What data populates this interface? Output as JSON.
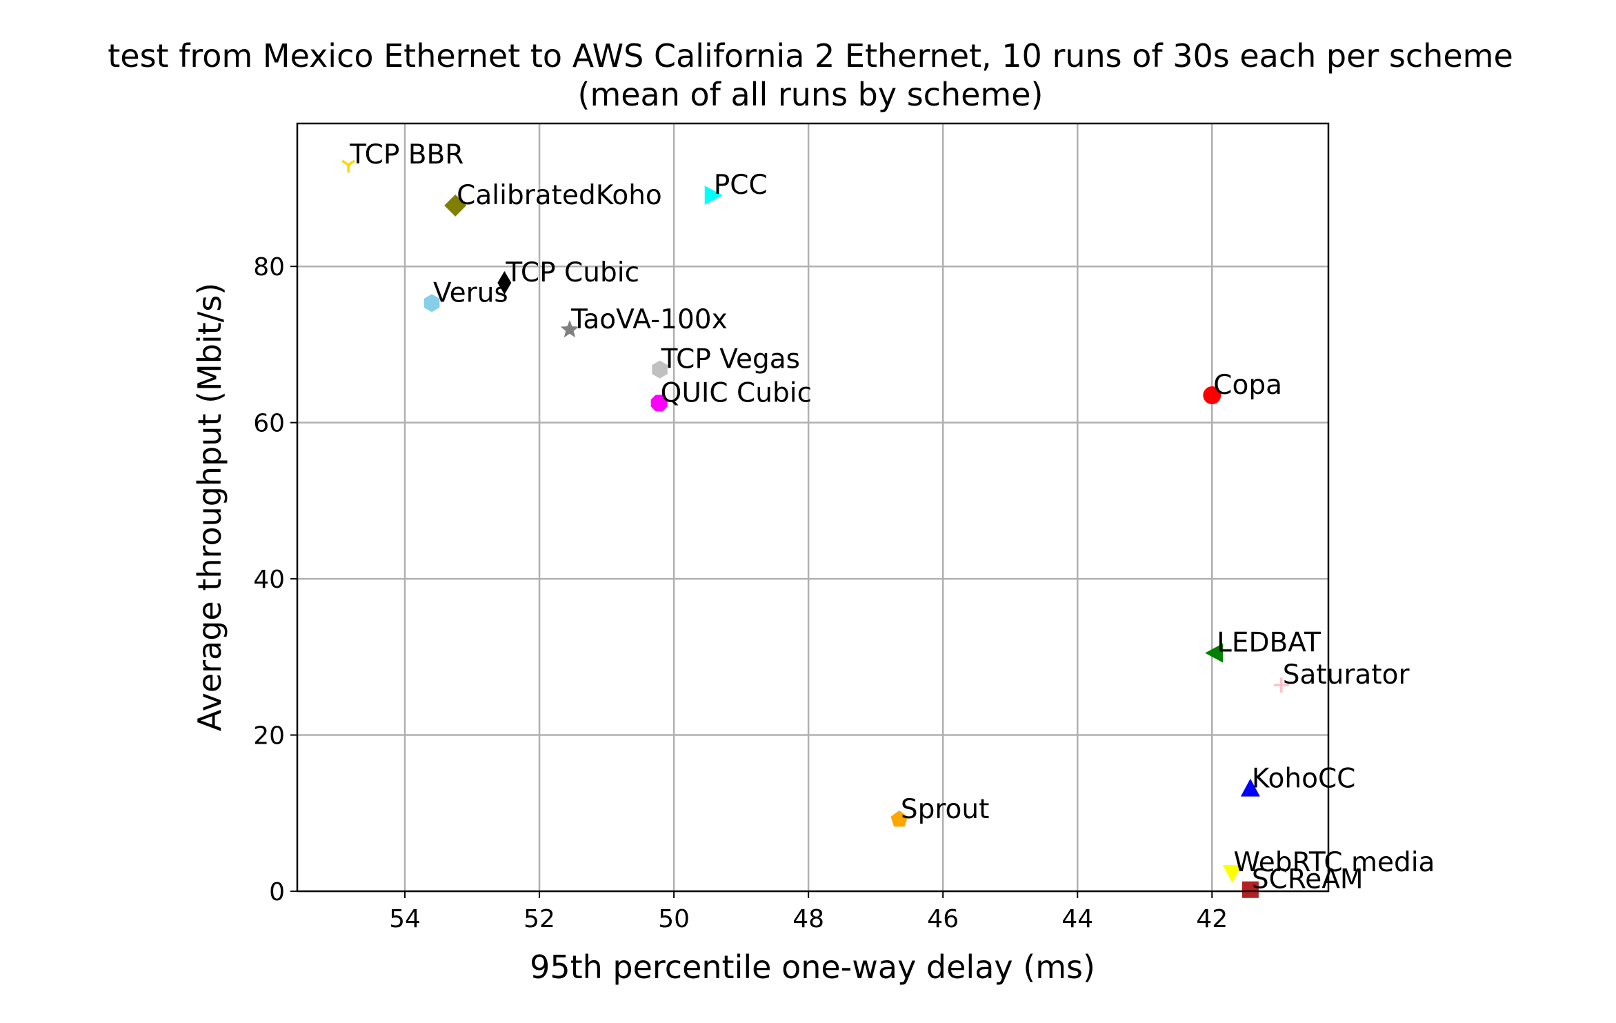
{
  "chart_data": {
    "type": "scatter",
    "title": "test from Mexico Ethernet to AWS California 2 Ethernet, 10 runs of 30s each per scheme",
    "subtitle": "(mean of all runs by scheme)",
    "xlabel": "95th percentile one-way delay (ms)",
    "ylabel": "Average throughput (Mbit/s)",
    "xlim": [
      55.6,
      40.27
    ],
    "ylim": [
      0,
      98.3
    ],
    "x_inverted": true,
    "grid": true,
    "xticks": [
      54,
      52,
      50,
      48,
      46,
      44,
      42
    ],
    "yticks": [
      0,
      20,
      40,
      60,
      80
    ],
    "series": [
      {
        "name": "TCP BBR",
        "x": 54.84,
        "y": 93.0,
        "marker": "tri_down",
        "color": "#ffd700"
      },
      {
        "name": "CalibratedKoho",
        "x": 53.25,
        "y": 87.8,
        "marker": "diamond",
        "color": "#808000"
      },
      {
        "name": "PCC",
        "x": 49.43,
        "y": 89.1,
        "marker": "triangle_right",
        "color": "#00ffff"
      },
      {
        "name": "TCP Cubic",
        "x": 52.52,
        "y": 77.9,
        "marker": "thin_diamond",
        "color": "#000000"
      },
      {
        "name": "Verus",
        "x": 53.6,
        "y": 75.3,
        "marker": "hexagon",
        "color": "#87ceeb"
      },
      {
        "name": "TaoVA-100x",
        "x": 51.55,
        "y": 71.9,
        "marker": "star",
        "color": "#808080"
      },
      {
        "name": "TCP Vegas",
        "x": 50.21,
        "y": 66.8,
        "marker": "hexagon",
        "color": "#c0c0c0"
      },
      {
        "name": "QUIC Cubic",
        "x": 50.22,
        "y": 62.5,
        "marker": "octagon",
        "color": "#ff00ff"
      },
      {
        "name": "Copa",
        "x": 42.0,
        "y": 63.5,
        "marker": "circle",
        "color": "#ff0000"
      },
      {
        "name": "LEDBAT",
        "x": 41.95,
        "y": 30.5,
        "marker": "triangle_left",
        "color": "#008000"
      },
      {
        "name": "Saturator",
        "x": 40.97,
        "y": 26.4,
        "marker": "plus",
        "color": "#ffc0cb"
      },
      {
        "name": "KohoCC",
        "x": 41.43,
        "y": 13.1,
        "marker": "triangle_up",
        "color": "#0000ff"
      },
      {
        "name": "Sprout",
        "x": 46.65,
        "y": 9.2,
        "marker": "pentagon",
        "color": "#ffa500"
      },
      {
        "name": "WebRTC media",
        "x": 41.7,
        "y": 2.4,
        "marker": "triangle_down",
        "color": "#ffff00"
      },
      {
        "name": "SCReAM",
        "x": 41.43,
        "y": 0.2,
        "marker": "square",
        "color": "#b22222"
      }
    ]
  }
}
